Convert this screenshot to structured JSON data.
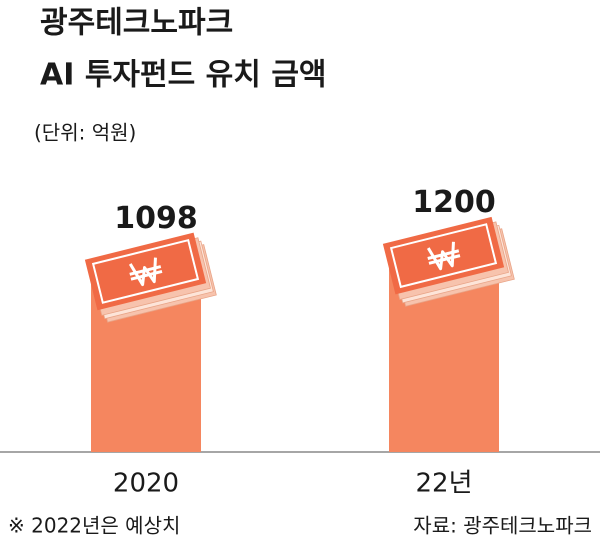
{
  "chart_data": {
    "type": "bar",
    "title": [
      "광주테크노파크",
      "AI 투자펀드 유치 금액"
    ],
    "subtitle": "(단위: 억원)",
    "categories": [
      "2020",
      "22년"
    ],
    "values": [
      1098,
      1200
    ],
    "color": "#f5865f",
    "ylim": [
      0,
      1300
    ],
    "notes": [
      "※ 2022년은 예상치",
      "자료: 광주테크노파크"
    ]
  }
}
